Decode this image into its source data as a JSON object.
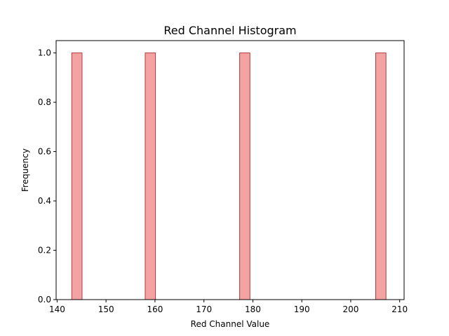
{
  "chart_data": {
    "type": "bar",
    "title": "Red Channel Histogram",
    "xlabel": "Red Channel Value",
    "ylabel": "Frequency",
    "xlim": [
      139.8,
      210.9
    ],
    "ylim": [
      0,
      1.05
    ],
    "xticks": [
      "140",
      "150",
      "160",
      "170",
      "180",
      "190",
      "200",
      "210"
    ],
    "yticks": [
      "0.0",
      "0.2",
      "0.4",
      "0.6",
      "0.8",
      "1.0"
    ],
    "bins": [
      {
        "x0": 143.0,
        "x1": 145.1,
        "count": 1
      },
      {
        "x0": 158.0,
        "x1": 160.1,
        "count": 1
      },
      {
        "x0": 177.3,
        "x1": 179.4,
        "count": 1
      },
      {
        "x0": 205.1,
        "x1": 207.2,
        "count": 1
      }
    ],
    "bar_fill": "#f4a3a3",
    "bar_edge": "#b03a3a",
    "grid": false
  }
}
